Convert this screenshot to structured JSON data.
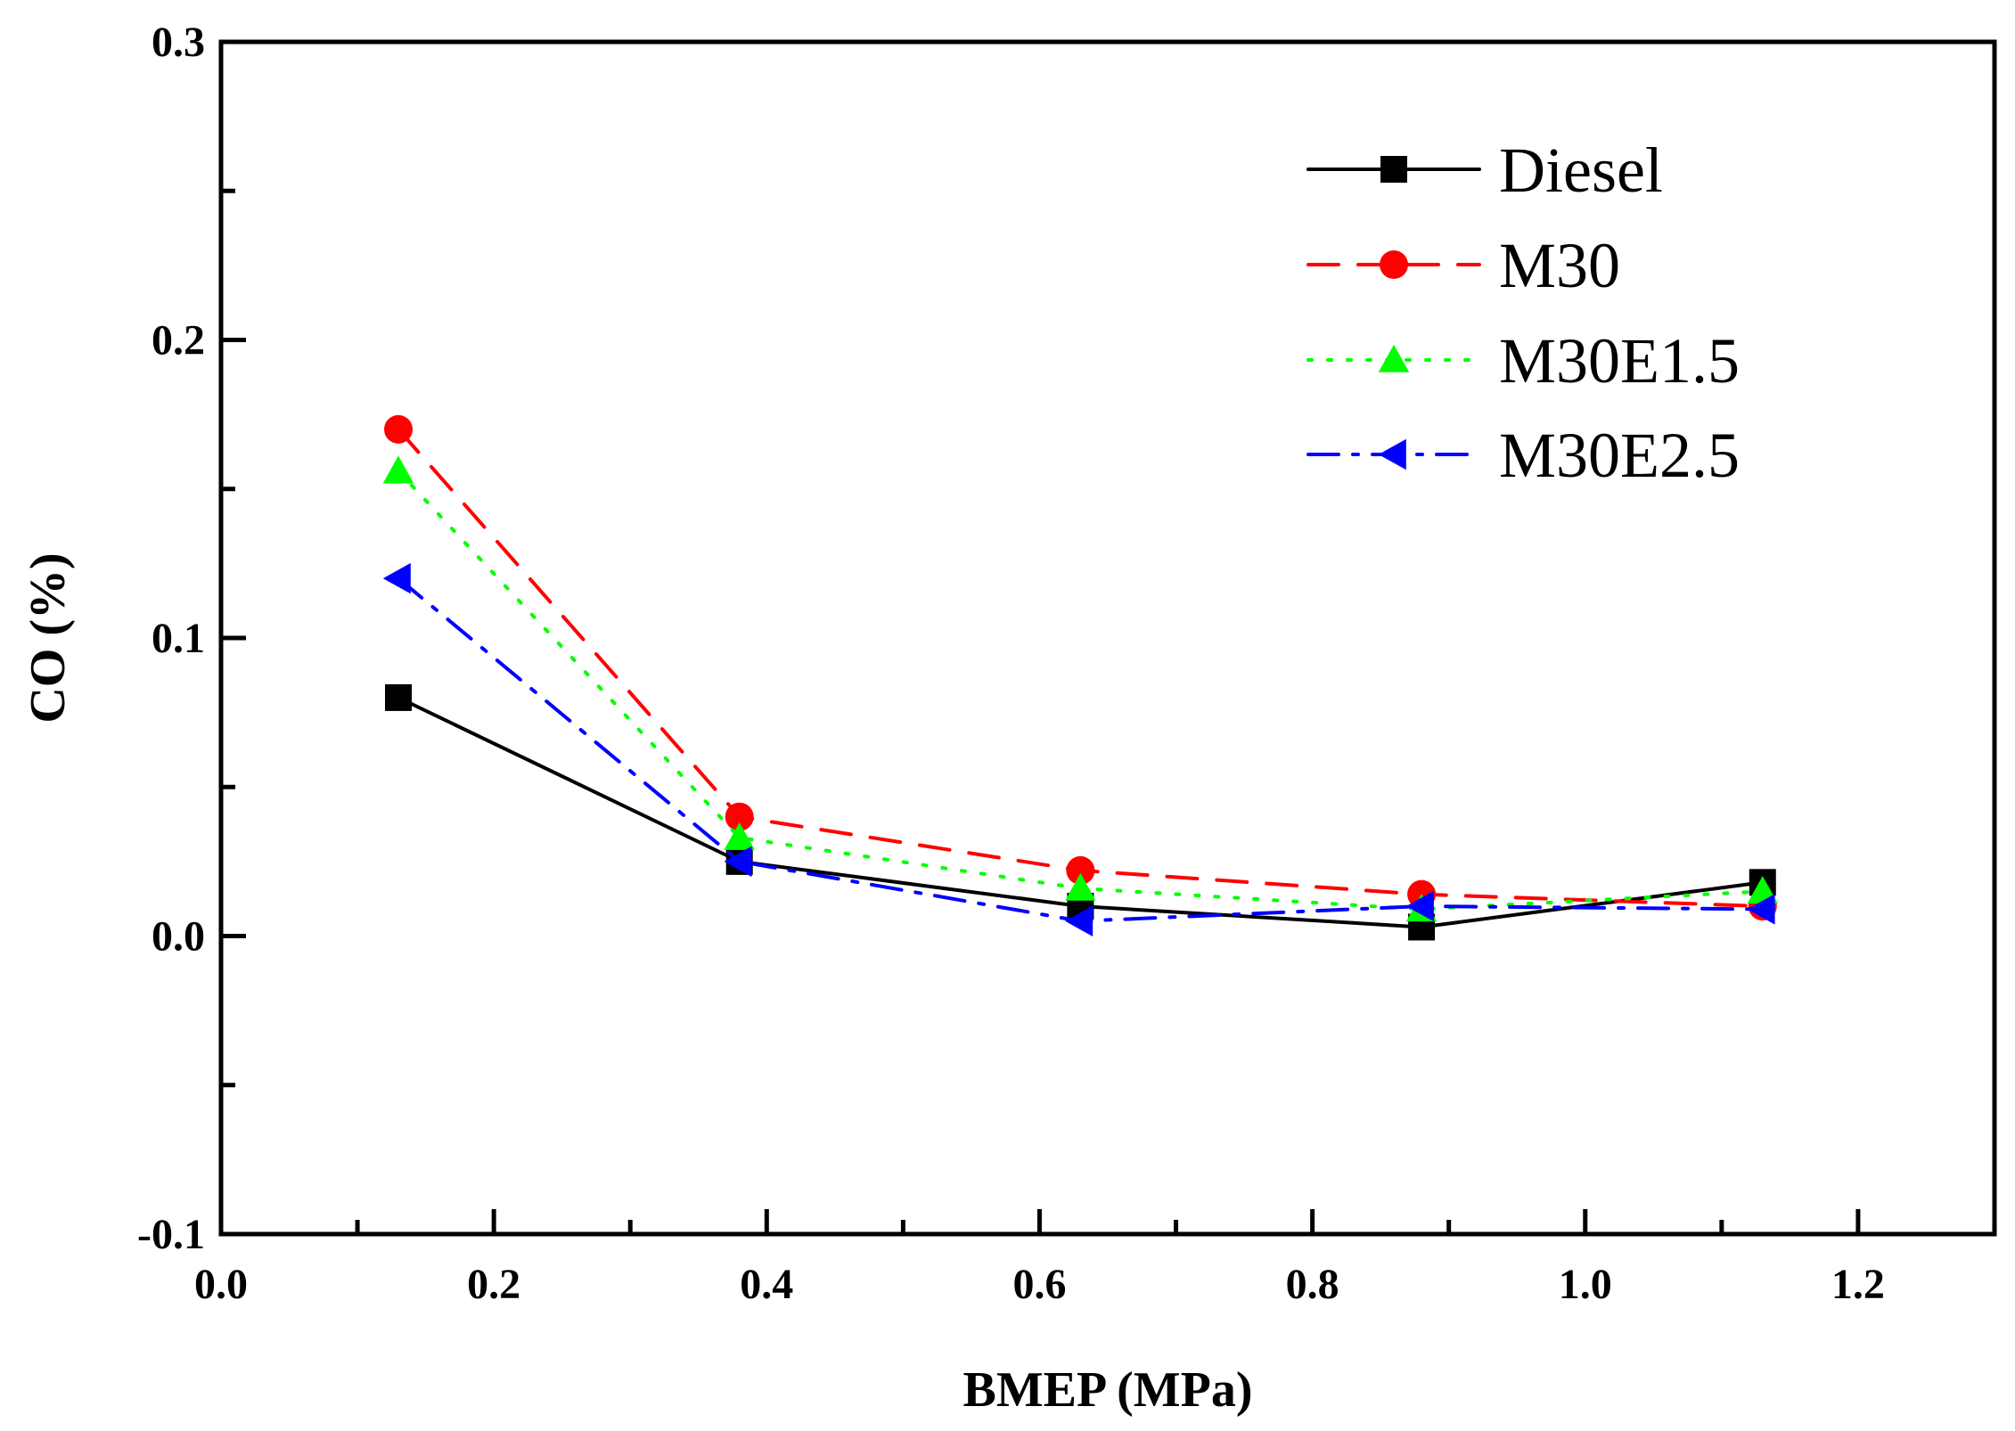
{
  "chart_data": {
    "type": "line",
    "title": "",
    "xlabel": "BMEP (MPa)",
    "ylabel": "CO (%)",
    "xlim": [
      0.0,
      1.3
    ],
    "ylim": [
      -0.1,
      0.3
    ],
    "x_ticks": [
      "0.0",
      "0.2",
      "0.4",
      "0.6",
      "0.8",
      "1.0",
      "1.2"
    ],
    "y_ticks": [
      "-0.1",
      "0.0",
      "0.1",
      "0.2",
      "0.3"
    ],
    "grid": false,
    "legend_position": "top-right",
    "x": [
      0.13,
      0.38,
      0.63,
      0.88,
      1.13
    ],
    "series": [
      {
        "name": "Diesel",
        "values": [
          0.08,
          0.025,
          0.01,
          0.003,
          0.018
        ],
        "color": "#000000",
        "marker": "square",
        "dash": "solid"
      },
      {
        "name": "M30",
        "values": [
          0.17,
          0.04,
          0.022,
          0.014,
          0.01
        ],
        "color": "#ff0000",
        "marker": "circle",
        "dash": "dashed"
      },
      {
        "name": "M30E1.5",
        "values": [
          0.156,
          0.033,
          0.016,
          0.009,
          0.015
        ],
        "color": "#00ff00",
        "marker": "triangle-up",
        "dash": "dotted"
      },
      {
        "name": "M30E2.5",
        "values": [
          0.12,
          0.025,
          0.005,
          0.01,
          0.009
        ],
        "color": "#0000ff",
        "marker": "triangle-left",
        "dash": "dash-dot"
      }
    ]
  }
}
